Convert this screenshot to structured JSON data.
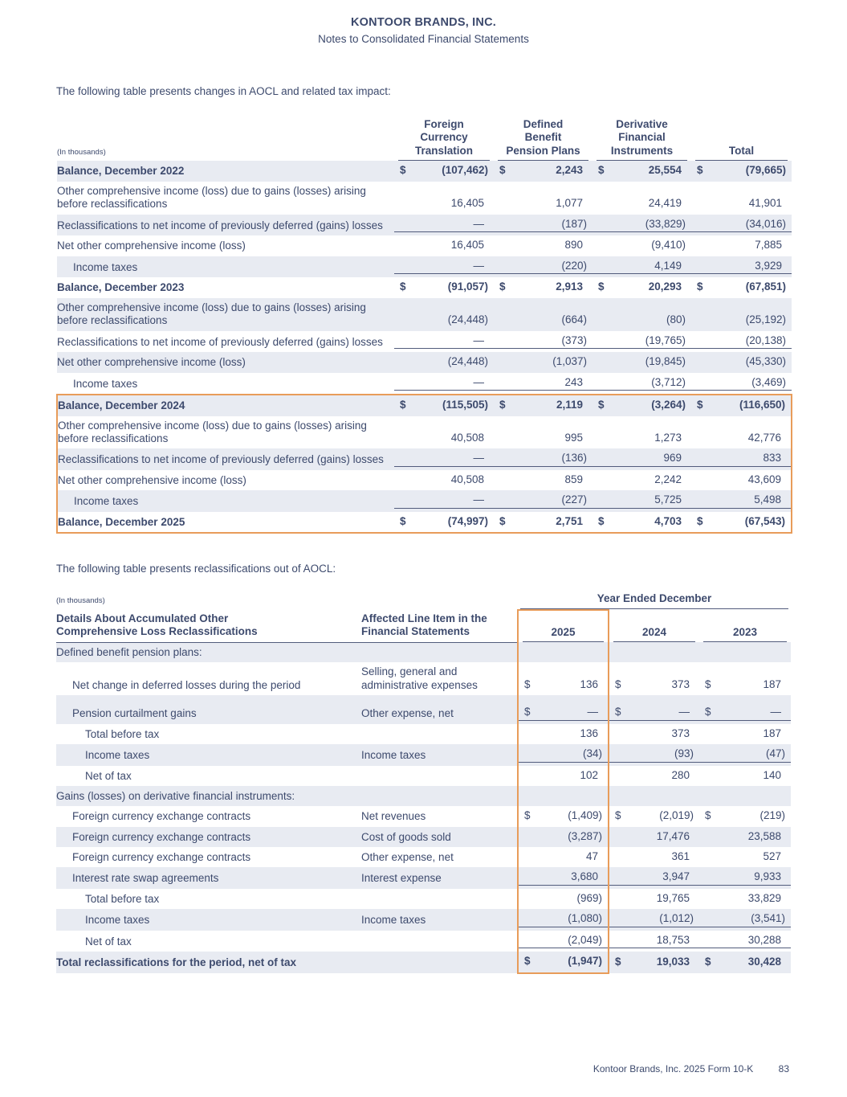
{
  "currency_symbol": "$",
  "colors": {
    "text": "#3d4a6d",
    "shaded_row": "#e8ebf2",
    "rule_line": "#525c7c",
    "highlight_box": "#e89c5a"
  },
  "page": {
    "company": "KONTOOR BRANDS, INC.",
    "subtitle": "Notes to Consolidated Financial Statements",
    "intro1": "The following table presents changes in AOCL and related tax impact:",
    "intro2": "The following table presents reclassifications out of AOCL:",
    "footer_text": "Kontoor Brands, Inc. 2025 Form 10-K",
    "page_number": "83"
  },
  "aocl_table": {
    "in_thousands_label": "(In thousands)",
    "columns": [
      "Foreign\nCurrency\nTranslation",
      "Defined\nBenefit\nPension Plans",
      "Derivative\nFinancial\nInstruments",
      "Total"
    ],
    "rows": [
      {
        "label": "Balance, December 2022",
        "bold": true,
        "shaded": true,
        "dollar": true,
        "values": [
          "(107,462)",
          "2,243",
          "25,554",
          "(79,665)"
        ]
      },
      {
        "label": "Other comprehensive income (loss) due to gains (losses) arising before reclassifications",
        "values": [
          "16,405",
          "1,077",
          "24,419",
          "41,901"
        ]
      },
      {
        "label": "Reclassifications to net income of previously deferred (gains) losses",
        "shaded": true,
        "rule": true,
        "values": [
          "—",
          "(187)",
          "(33,829)",
          "(34,016)"
        ]
      },
      {
        "label": "Net other comprehensive income (loss)",
        "values": [
          "16,405",
          "890",
          "(9,410)",
          "7,885"
        ]
      },
      {
        "label": "Income taxes",
        "indent": 1,
        "shaded": true,
        "rule": true,
        "values": [
          "—",
          "(220)",
          "4,149",
          "3,929"
        ]
      },
      {
        "label": "Balance, December 2023",
        "bold": true,
        "dollar": true,
        "values": [
          "(91,057)",
          "2,913",
          "20,293",
          "(67,851)"
        ]
      },
      {
        "label": "Other comprehensive income (loss) due to gains (losses) arising before reclassifications",
        "shaded": true,
        "values": [
          "(24,448)",
          "(664)",
          "(80)",
          "(25,192)"
        ]
      },
      {
        "label": "Reclassifications to net income of previously deferred (gains) losses",
        "rule": true,
        "values": [
          "—",
          "(373)",
          "(19,765)",
          "(20,138)"
        ]
      },
      {
        "label": "Net other comprehensive income (loss)",
        "shaded": true,
        "values": [
          "(24,448)",
          "(1,037)",
          "(19,845)",
          "(45,330)"
        ]
      },
      {
        "label": "Income taxes",
        "indent": 1,
        "rule": true,
        "values": [
          "—",
          "243",
          "(3,712)",
          "(3,469)"
        ]
      },
      {
        "label": "Balance, December 2024",
        "bold": true,
        "shaded": true,
        "dollar": true,
        "hl": "top",
        "values": [
          "(115,505)",
          "2,119",
          "(3,264)",
          "(116,650)"
        ]
      },
      {
        "label": "Other comprehensive income (loss) due to gains (losses) arising before reclassifications",
        "hl": "mid",
        "values": [
          "40,508",
          "995",
          "1,273",
          "42,776"
        ]
      },
      {
        "label": "Reclassifications to net income of previously deferred (gains) losses",
        "shaded": true,
        "rule": true,
        "hl": "mid",
        "values": [
          "—",
          "(136)",
          "969",
          "833"
        ]
      },
      {
        "label": "Net other comprehensive income (loss)",
        "hl": "mid",
        "values": [
          "40,508",
          "859",
          "2,242",
          "43,609"
        ]
      },
      {
        "label": "Income taxes",
        "indent": 1,
        "shaded": true,
        "rule": true,
        "hl": "mid",
        "values": [
          "—",
          "(227)",
          "5,725",
          "5,498"
        ]
      },
      {
        "label": "Balance, December 2025",
        "bold": true,
        "dollar": true,
        "hl": "bottom",
        "values": [
          "(74,997)",
          "2,751",
          "4,703",
          "(67,543)"
        ]
      }
    ]
  },
  "reclass_table": {
    "in_thousands_label": "(In thousands)",
    "year_ended_header": "Year Ended December",
    "col1_header": "Details About Accumulated Other\nComprehensive Loss Reclassifications",
    "col2_header": "Affected Line Item in the\nFinancial Statements",
    "years": [
      "2025",
      "2024",
      "2023"
    ],
    "rows": [
      {
        "label": "Defined benefit pension plans:",
        "section": true,
        "shaded": true
      },
      {
        "label": "Net change in deferred losses during the period",
        "indent": 1,
        "affected": "Selling, general and administrative expenses",
        "dollar": true,
        "values": [
          "136",
          "373",
          "187"
        ]
      },
      {
        "label": "Pension curtailment gains",
        "indent": 1,
        "affected": "Other expense, net",
        "dollar": true,
        "shaded": true,
        "rule": true,
        "pad_top": true,
        "values": [
          "—",
          "—",
          "—"
        ]
      },
      {
        "label": "Total before tax",
        "indent": 2,
        "affected": "",
        "values": [
          "136",
          "373",
          "187"
        ]
      },
      {
        "label": "Income taxes",
        "indent": 2,
        "affected": "Income taxes",
        "shaded": true,
        "rule": true,
        "values": [
          "(34)",
          "(93)",
          "(47)"
        ]
      },
      {
        "label": "Net of tax",
        "indent": 2,
        "affected": "",
        "values": [
          "102",
          "280",
          "140"
        ]
      },
      {
        "label": "Gains (losses) on derivative financial instruments:",
        "section": true,
        "shaded": true
      },
      {
        "label": "Foreign currency exchange contracts",
        "indent": 1,
        "affected": "Net revenues",
        "dollar": true,
        "values": [
          "(1,409)",
          "(2,019)",
          "(219)"
        ]
      },
      {
        "label": "Foreign currency exchange contracts",
        "indent": 1,
        "affected": "Cost of goods sold",
        "shaded": true,
        "values": [
          "(3,287)",
          "17,476",
          "23,588"
        ]
      },
      {
        "label": "Foreign currency exchange contracts",
        "indent": 1,
        "affected": "Other expense, net",
        "values": [
          "47",
          "361",
          "527"
        ]
      },
      {
        "label": "Interest rate swap agreements",
        "indent": 1,
        "affected": "Interest expense",
        "shaded": true,
        "rule": true,
        "values": [
          "3,680",
          "3,947",
          "9,933"
        ]
      },
      {
        "label": "Total before tax",
        "indent": 2,
        "affected": "",
        "values": [
          "(969)",
          "19,765",
          "33,829"
        ]
      },
      {
        "label": "Income taxes",
        "indent": 2,
        "affected": "Income taxes",
        "shaded": true,
        "rule": true,
        "values": [
          "(1,080)",
          "(1,012)",
          "(3,541)"
        ]
      },
      {
        "label": "Net of tax",
        "indent": 2,
        "affected": "",
        "rule": true,
        "values": [
          "(2,049)",
          "18,753",
          "30,288"
        ]
      },
      {
        "label": "Total reclassifications for the period, net of tax",
        "bold": true,
        "shaded": true,
        "dollar": true,
        "values": [
          "(1,947)",
          "19,033",
          "30,428"
        ]
      }
    ]
  }
}
